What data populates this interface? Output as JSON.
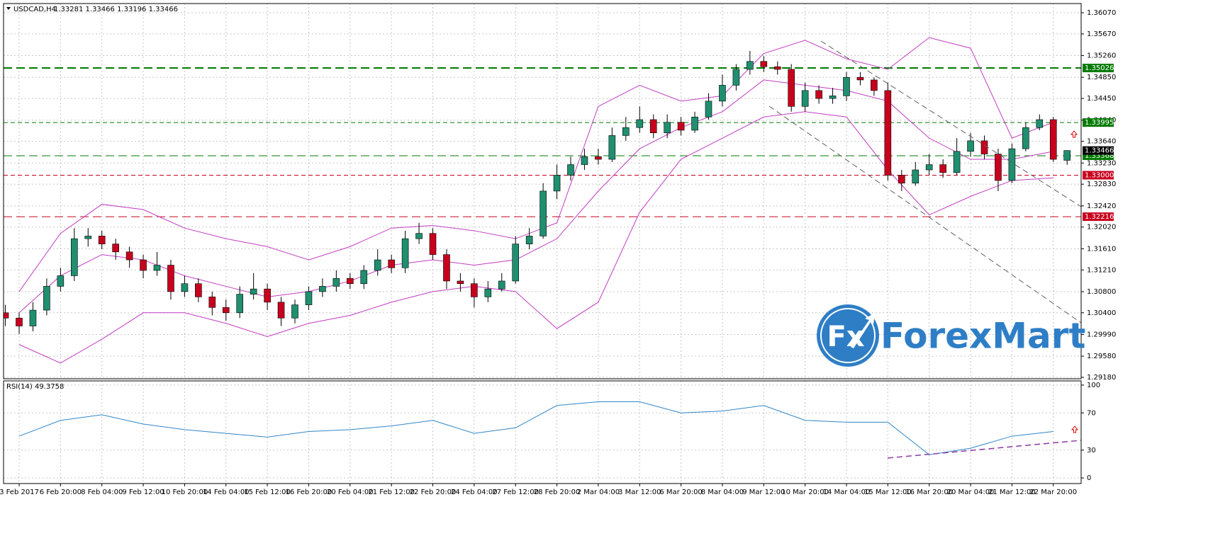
{
  "chart_data": {
    "type": "candlestick",
    "title": "USDCAD,H4",
    "quote": "1.33281 1.33466 1.33196 1.33466",
    "categories": [
      "3 Feb 2017",
      "6 Feb 20:00",
      "8 Feb 04:00",
      "9 Feb 12:00",
      "10 Feb 20:00",
      "14 Feb 04:00",
      "15 Feb 12:00",
      "16 Feb 20:00",
      "20 Feb 04:00",
      "21 Feb 12:00",
      "22 Feb 20:00",
      "24 Feb 04:00",
      "27 Feb 12:00",
      "28 Feb 20:00",
      "2 Mar 04:00",
      "3 Mar 12:00",
      "6 Mar 20:00",
      "8 Mar 04:00",
      "9 Mar 12:00",
      "10 Mar 20:00",
      "14 Mar 04:00",
      "15 Mar 12:00",
      "16 Mar 20:00",
      "20 Mar 04:00",
      "21 Mar 12:00",
      "22 Mar 20:00"
    ],
    "open": [
      1.304,
      1.303,
      1.3015,
      1.3045,
      1.309,
      1.311,
      1.318,
      1.3185,
      1.317,
      1.3155,
      1.314,
      1.312,
      1.313,
      1.308,
      1.3095,
      1.307,
      1.305,
      1.304,
      1.3075,
      1.3085,
      1.306,
      1.303,
      1.3055,
      1.308,
      1.309,
      1.3105,
      1.3095,
      1.312,
      1.314,
      1.3125,
      1.318,
      1.319,
      1.315,
      1.31,
      1.3095,
      1.307,
      1.3085,
      1.31,
      1.317,
      1.3185,
      1.327,
      1.33,
      1.332,
      1.3335,
      1.333,
      1.3375,
      1.339,
      1.3405,
      1.338,
      1.34,
      1.3385,
      1.341,
      1.344,
      1.347,
      1.35,
      1.3515,
      1.3505,
      1.35,
      1.343,
      1.346,
      1.3445,
      1.345,
      1.3485,
      1.348,
      1.346,
      1.33,
      1.3285,
      1.331,
      1.332,
      1.3305,
      1.3345,
      1.3365,
      1.334,
      1.329,
      1.335,
      1.339,
      1.3405,
      1.33281
    ],
    "high": [
      1.3055,
      1.304,
      1.306,
      1.3105,
      1.3125,
      1.32,
      1.32,
      1.3195,
      1.318,
      1.3165,
      1.315,
      1.3155,
      1.314,
      1.311,
      1.3105,
      1.308,
      1.3065,
      1.309,
      1.3115,
      1.3095,
      1.307,
      1.3065,
      1.309,
      1.3105,
      1.312,
      1.3115,
      1.313,
      1.316,
      1.315,
      1.3195,
      1.321,
      1.32,
      1.316,
      1.3115,
      1.3105,
      1.31,
      1.3115,
      1.3185,
      1.32,
      1.3285,
      1.332,
      1.3335,
      1.335,
      1.335,
      1.339,
      1.341,
      1.343,
      1.3415,
      1.3415,
      1.341,
      1.342,
      1.3455,
      1.349,
      1.351,
      1.3535,
      1.3525,
      1.3515,
      1.351,
      1.3475,
      1.347,
      1.3465,
      1.3495,
      1.3495,
      1.3485,
      1.3475,
      1.331,
      1.3325,
      1.334,
      1.333,
      1.337,
      1.338,
      1.3375,
      1.335,
      1.336,
      1.34,
      1.3415,
      1.341,
      1.33466
    ],
    "low": [
      1.3015,
      1.3,
      1.3005,
      1.3035,
      1.308,
      1.31,
      1.3165,
      1.316,
      1.314,
      1.3125,
      1.3105,
      1.311,
      1.3065,
      1.307,
      1.306,
      1.3035,
      1.3025,
      1.303,
      1.3065,
      1.3045,
      1.3015,
      1.302,
      1.3045,
      1.307,
      1.308,
      1.3085,
      1.3085,
      1.311,
      1.3115,
      1.3115,
      1.317,
      1.314,
      1.3085,
      1.308,
      1.305,
      1.306,
      1.308,
      1.3095,
      1.316,
      1.318,
      1.3255,
      1.329,
      1.331,
      1.332,
      1.3325,
      1.3365,
      1.338,
      1.337,
      1.337,
      1.3375,
      1.338,
      1.3405,
      1.343,
      1.346,
      1.349,
      1.3495,
      1.349,
      1.342,
      1.342,
      1.3435,
      1.3435,
      1.344,
      1.347,
      1.345,
      1.329,
      1.327,
      1.328,
      1.33,
      1.3295,
      1.33,
      1.3335,
      1.333,
      1.327,
      1.3285,
      1.3345,
      1.3385,
      1.3325,
      1.33196
    ],
    "close": [
      1.303,
      1.3015,
      1.3045,
      1.309,
      1.311,
      1.318,
      1.3185,
      1.317,
      1.3155,
      1.314,
      1.312,
      1.313,
      1.308,
      1.3095,
      1.307,
      1.305,
      1.304,
      1.3075,
      1.3085,
      1.306,
      1.303,
      1.3055,
      1.308,
      1.309,
      1.3105,
      1.3095,
      1.312,
      1.314,
      1.3125,
      1.318,
      1.319,
      1.315,
      1.31,
      1.3095,
      1.307,
      1.3085,
      1.31,
      1.317,
      1.3185,
      1.327,
      1.33,
      1.332,
      1.3335,
      1.333,
      1.3375,
      1.339,
      1.3405,
      1.338,
      1.34,
      1.3385,
      1.341,
      1.344,
      1.347,
      1.35,
      1.3515,
      1.3505,
      1.35,
      1.343,
      1.346,
      1.3445,
      1.345,
      1.3485,
      1.348,
      1.346,
      1.33,
      1.3285,
      1.331,
      1.332,
      1.3305,
      1.3345,
      1.3365,
      1.334,
      1.329,
      1.335,
      1.339,
      1.3405,
      1.333,
      1.33466
    ],
    "colors": {
      "up": "#1f8f6f",
      "down": "#c8001e",
      "wick": "#000000"
    },
    "ylim": [
      1.29153,
      1.36244
    ],
    "yticks": [
      {
        "value": 1.3607,
        "label": "1.36070"
      },
      {
        "value": 1.3567,
        "label": "1.35670"
      },
      {
        "value": 1.3526,
        "label": "1.35260"
      },
      {
        "value": 1.3485,
        "label": "1.34850"
      },
      {
        "value": 1.3445,
        "label": "1.34450"
      },
      {
        "value": 1.3404,
        "label": "1.34040"
      },
      {
        "value": 1.3364,
        "label": "1.33640"
      },
      {
        "value": 1.3323,
        "label": "1.33230"
      },
      {
        "value": 1.3283,
        "label": "1.32830"
      },
      {
        "value": 1.3242,
        "label": "1.32420"
      },
      {
        "value": 1.3202,
        "label": "1.32020"
      },
      {
        "value": 1.3161,
        "label": "1.31610"
      },
      {
        "value": 1.3121,
        "label": "1.31210"
      },
      {
        "value": 1.308,
        "label": "1.30800"
      },
      {
        "value": 1.304,
        "label": "1.30400"
      },
      {
        "value": 1.2999,
        "label": "1.29990"
      },
      {
        "value": 1.2958,
        "label": "1.29580"
      },
      {
        "value": 1.2918,
        "label": "1.29180"
      }
    ],
    "grid": true,
    "levels": [
      {
        "value": 1.35026,
        "label": "1.35026",
        "color": "#007a00",
        "style": "long-dashed",
        "width": 2
      },
      {
        "value": 1.33995,
        "label": "1.33995",
        "color": "#007a00",
        "style": "dashed",
        "width": 1
      },
      {
        "value": 1.33368,
        "label": "1.33368",
        "color": "#007a00",
        "style": "long-dashed",
        "width": 1
      },
      {
        "value": 1.33,
        "label": "1.33000",
        "color": "#c8001e",
        "style": "dashed",
        "width": 1
      },
      {
        "value": 1.32216,
        "label": "1.32216",
        "color": "#c8001e",
        "style": "long-dashed",
        "width": 1
      }
    ],
    "current": {
      "value": 1.33466,
      "label": "1.33466",
      "color": "#000000"
    },
    "bands": {
      "color": "#c23cc2",
      "upper": [
        1.308,
        1.319,
        1.3245,
        1.3235,
        1.32,
        1.318,
        1.3165,
        1.314,
        1.3165,
        1.32,
        1.3205,
        1.3195,
        1.318,
        1.321,
        1.343,
        1.347,
        1.344,
        1.345,
        1.353,
        1.3555,
        1.352,
        1.35,
        1.356,
        1.354,
        1.337,
        1.34
      ],
      "middle": [
        1.304,
        1.311,
        1.315,
        1.314,
        1.311,
        1.309,
        1.307,
        1.308,
        1.31,
        1.313,
        1.314,
        1.313,
        1.314,
        1.318,
        1.327,
        1.335,
        1.339,
        1.342,
        1.348,
        1.347,
        1.346,
        1.344,
        1.337,
        1.333,
        1.333,
        1.3345
      ],
      "lower": [
        1.298,
        1.2945,
        1.299,
        1.304,
        1.304,
        1.302,
        1.2995,
        1.302,
        1.3035,
        1.306,
        1.308,
        1.309,
        1.308,
        1.301,
        1.306,
        1.323,
        1.333,
        1.337,
        1.341,
        1.342,
        1.341,
        1.331,
        1.3225,
        1.326,
        1.329,
        1.3295
      ]
    },
    "indicator": {
      "type": "line",
      "title": "RSI(14) 49.3758",
      "color": "#2f86c8",
      "values": [
        45,
        62,
        68,
        58,
        52,
        48,
        44,
        50,
        52,
        56,
        62,
        48,
        54,
        78,
        82,
        82,
        70,
        72,
        78,
        62,
        60,
        60,
        25,
        32,
        45,
        50
      ],
      "ylim": [
        -6,
        104.5
      ],
      "yticks": [
        0,
        30,
        70,
        100
      ]
    },
    "logo": {
      "mark": "Fx",
      "name": "ForexMart"
    }
  }
}
